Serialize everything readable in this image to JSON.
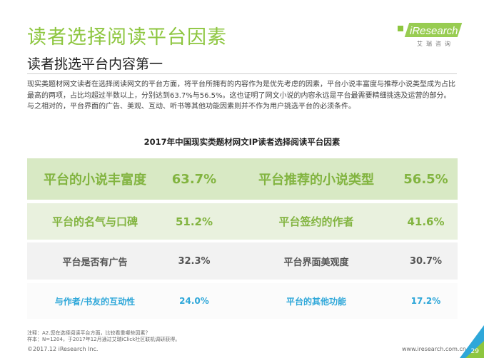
{
  "header": {
    "title": "读者选择阅读平台因素",
    "subtitle": "读者挑选平台内容第一"
  },
  "logo": {
    "brand": "iResearch",
    "sub": "艾瑞咨询"
  },
  "intro": "现实类题材网文读者在选择阅读网文的平台方面，将平台所拥有的内容作为是优先考虑的因素，平台小说丰富度与推荐小说类型成为占比最高的两项，占比均超过半数以上，分别达到63.7%与56.5%。这也证明了网文小说的内容永远是平台最需要精细挑选及运营的部分。与之相对的，平台界面的广告、美观、互动、听书等其他功能因素则并不作为用户挑选平台的必须条件。",
  "chart_data": {
    "type": "table",
    "title": "2017年中国现实类题材网文IP读者选择阅读平台因素",
    "rows": [
      [
        {
          "label": "平台的小说丰富度",
          "value": "63.7%"
        },
        {
          "label": "平台推荐的小说类型",
          "value": "56.5%"
        }
      ],
      [
        {
          "label": "平台的名气与口碑",
          "value": "51.2%"
        },
        {
          "label": "平台签约的作者",
          "value": "41.6%"
        }
      ],
      [
        {
          "label": "平台是否有广告",
          "value": "32.3%"
        },
        {
          "label": "平台界面美观度",
          "value": "30.7%"
        }
      ],
      [
        {
          "label": "与作者/书友的互动性",
          "value": "24.0%"
        },
        {
          "label": "平台的其他功能",
          "value": "17.2%"
        }
      ]
    ],
    "colors": {
      "accent": "#8dc63f",
      "blue": "#2ea7d9"
    }
  },
  "footer": {
    "note1": "注释：A2.您在选择阅读平台方面，比较看重哪些因素？",
    "note2": "样本：N=1204，于2017年12月通过艾瑞iClick社区联机调研获得。",
    "copyright": "©2017.12 iResearch Inc.",
    "site": "www.iresearch.com.cn",
    "page": "29"
  }
}
